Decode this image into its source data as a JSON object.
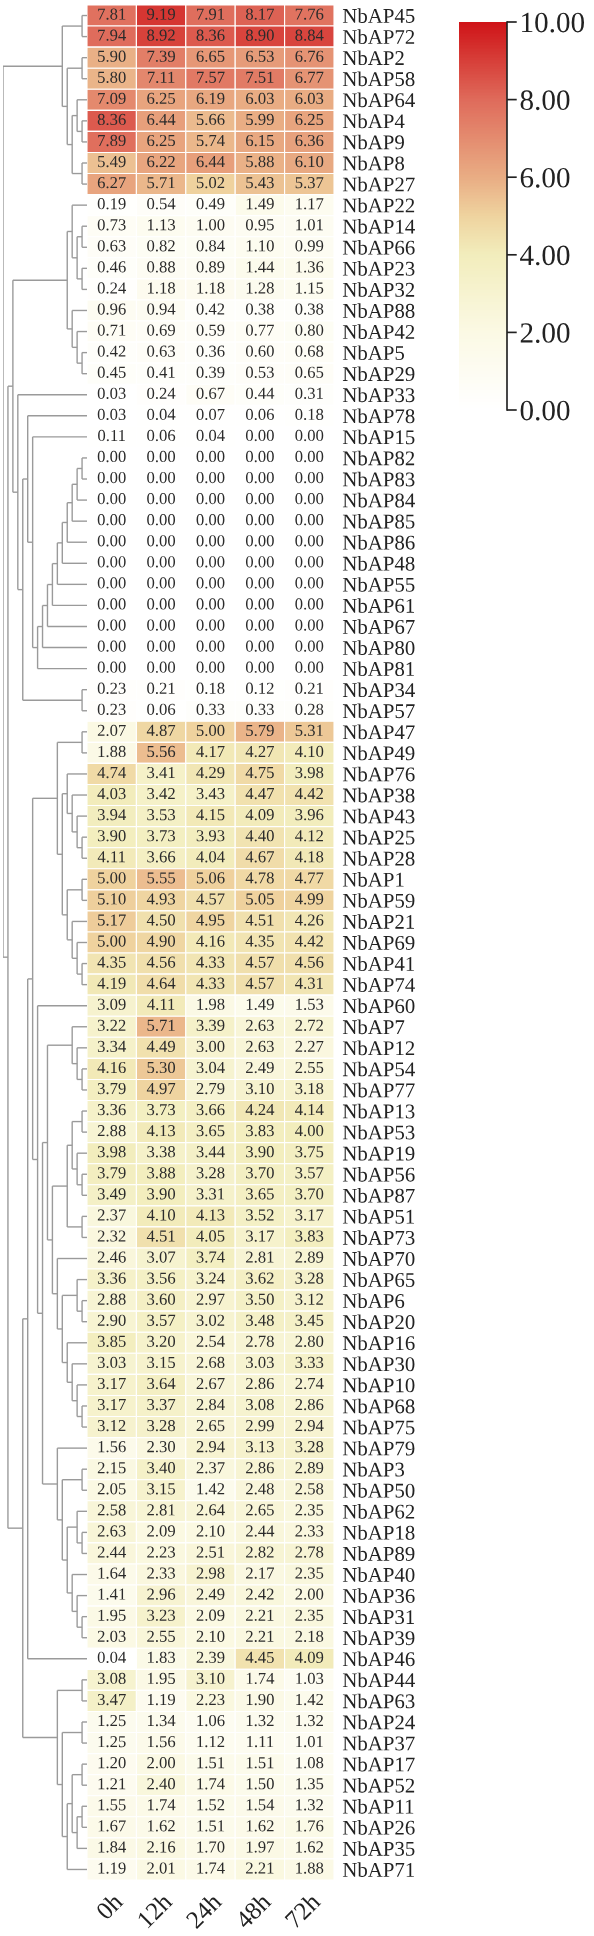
{
  "chart_data": {
    "type": "heatmap",
    "categories": [
      "0h",
      "12h",
      "24h",
      "48h",
      "72h"
    ],
    "y_categories": [
      "NbAP45",
      "NbAP72",
      "NbAP2",
      "NbAP58",
      "NbAP64",
      "NbAP4",
      "NbAP9",
      "NbAP8",
      "NbAP27",
      "NbAP22",
      "NbAP14",
      "NbAP66",
      "NbAP23",
      "NbAP32",
      "NbAP88",
      "NbAP42",
      "NbAP5",
      "NbAP29",
      "NbAP33",
      "NbAP78",
      "NbAP15",
      "NbAP82",
      "NbAP83",
      "NbAP84",
      "NbAP85",
      "NbAP86",
      "NbAP48",
      "NbAP55",
      "NbAP61",
      "NbAP67",
      "NbAP80",
      "NbAP81",
      "NbAP34",
      "NbAP57",
      "NbAP47",
      "NbAP49",
      "NbAP76",
      "NbAP38",
      "NbAP43",
      "NbAP25",
      "NbAP28",
      "NbAP1",
      "NbAP59",
      "NbAP21",
      "NbAP69",
      "NbAP41",
      "NbAP74",
      "NbAP60",
      "NbAP7",
      "NbAP12",
      "NbAP54",
      "NbAP77",
      "NbAP13",
      "NbAP53",
      "NbAP19",
      "NbAP56",
      "NbAP87",
      "NbAP51",
      "NbAP73",
      "NbAP70",
      "NbAP65",
      "NbAP6",
      "NbAP20",
      "NbAP16",
      "NbAP30",
      "NbAP10",
      "NbAP68",
      "NbAP75",
      "NbAP79",
      "NbAP3",
      "NbAP50",
      "NbAP62",
      "NbAP18",
      "NbAP89",
      "NbAP40",
      "NbAP36",
      "NbAP31",
      "NbAP39",
      "NbAP46",
      "NbAP44",
      "NbAP63",
      "NbAP24",
      "NbAP37",
      "NbAP17",
      "NbAP52",
      "NbAP11",
      "NbAP26",
      "NbAP35",
      "NbAP71"
    ],
    "cells": [
      [
        7.81,
        9.19,
        7.91,
        8.17,
        7.76
      ],
      [
        7.94,
        8.92,
        8.36,
        8.9,
        8.84
      ],
      [
        5.9,
        7.39,
        6.65,
        6.53,
        6.76
      ],
      [
        5.8,
        7.11,
        7.57,
        7.51,
        6.77
      ],
      [
        7.09,
        6.25,
        6.19,
        6.03,
        6.03
      ],
      [
        8.36,
        6.44,
        5.66,
        5.99,
        6.25
      ],
      [
        7.89,
        6.25,
        5.74,
        6.15,
        6.36
      ],
      [
        5.49,
        6.22,
        6.44,
        5.88,
        6.1
      ],
      [
        6.27,
        5.71,
        5.02,
        5.43,
        5.37
      ],
      [
        0.19,
        0.54,
        0.49,
        1.49,
        1.17
      ],
      [
        0.73,
        1.13,
        1.0,
        0.95,
        1.01
      ],
      [
        0.63,
        0.82,
        0.84,
        1.1,
        0.99
      ],
      [
        0.46,
        0.88,
        0.89,
        1.44,
        1.36
      ],
      [
        0.24,
        1.18,
        1.18,
        1.28,
        1.15
      ],
      [
        0.96,
        0.94,
        0.42,
        0.38,
        0.38
      ],
      [
        0.71,
        0.69,
        0.59,
        0.77,
        0.8
      ],
      [
        0.42,
        0.63,
        0.36,
        0.6,
        0.68
      ],
      [
        0.45,
        0.41,
        0.39,
        0.53,
        0.65
      ],
      [
        0.03,
        0.24,
        0.67,
        0.44,
        0.31
      ],
      [
        0.03,
        0.04,
        0.07,
        0.06,
        0.18
      ],
      [
        0.11,
        0.06,
        0.04,
        0.0,
        0.0
      ],
      [
        0.0,
        0.0,
        0.0,
        0.0,
        0.0
      ],
      [
        0.0,
        0.0,
        0.0,
        0.0,
        0.0
      ],
      [
        0.0,
        0.0,
        0.0,
        0.0,
        0.0
      ],
      [
        0.0,
        0.0,
        0.0,
        0.0,
        0.0
      ],
      [
        0.0,
        0.0,
        0.0,
        0.0,
        0.0
      ],
      [
        0.0,
        0.0,
        0.0,
        0.0,
        0.0
      ],
      [
        0.0,
        0.0,
        0.0,
        0.0,
        0.0
      ],
      [
        0.0,
        0.0,
        0.0,
        0.0,
        0.0
      ],
      [
        0.0,
        0.0,
        0.0,
        0.0,
        0.0
      ],
      [
        0.0,
        0.0,
        0.0,
        0.0,
        0.0
      ],
      [
        0.0,
        0.0,
        0.0,
        0.0,
        0.0
      ],
      [
        0.23,
        0.21,
        0.18,
        0.12,
        0.21
      ],
      [
        0.23,
        0.06,
        0.33,
        0.33,
        0.28
      ],
      [
        2.07,
        4.87,
        5.0,
        5.79,
        5.31
      ],
      [
        1.88,
        5.56,
        4.17,
        4.27,
        4.1
      ],
      [
        4.74,
        3.41,
        4.29,
        4.75,
        3.98
      ],
      [
        4.03,
        3.42,
        3.43,
        4.47,
        4.42
      ],
      [
        3.94,
        3.53,
        4.15,
        4.09,
        3.96
      ],
      [
        3.9,
        3.73,
        3.93,
        4.4,
        4.12
      ],
      [
        4.11,
        3.66,
        4.04,
        4.67,
        4.18
      ],
      [
        5.0,
        5.55,
        5.06,
        4.78,
        4.77
      ],
      [
        5.1,
        4.93,
        4.57,
        5.05,
        4.99
      ],
      [
        5.17,
        4.5,
        4.95,
        4.51,
        4.26
      ],
      [
        5.0,
        4.9,
        4.16,
        4.35,
        4.42
      ],
      [
        4.35,
        4.56,
        4.33,
        4.57,
        4.56
      ],
      [
        4.19,
        4.64,
        4.33,
        4.57,
        4.31
      ],
      [
        3.09,
        4.11,
        1.98,
        1.49,
        1.53
      ],
      [
        3.22,
        5.71,
        3.39,
        2.63,
        2.72
      ],
      [
        3.34,
        4.49,
        3.0,
        2.63,
        2.27
      ],
      [
        4.16,
        5.3,
        3.04,
        2.49,
        2.55
      ],
      [
        3.79,
        4.97,
        2.79,
        3.1,
        3.18
      ],
      [
        3.36,
        3.73,
        3.66,
        4.24,
        4.14
      ],
      [
        2.88,
        4.13,
        3.65,
        3.83,
        4.0
      ],
      [
        3.98,
        3.38,
        3.44,
        3.9,
        3.75
      ],
      [
        3.79,
        3.88,
        3.28,
        3.7,
        3.57
      ],
      [
        3.49,
        3.9,
        3.31,
        3.65,
        3.7
      ],
      [
        2.37,
        4.1,
        4.13,
        3.52,
        3.17
      ],
      [
        2.32,
        4.51,
        4.05,
        3.17,
        3.83
      ],
      [
        2.46,
        3.07,
        3.74,
        2.81,
        2.89
      ],
      [
        3.36,
        3.56,
        3.24,
        3.62,
        3.28
      ],
      [
        2.88,
        3.6,
        2.97,
        3.5,
        3.12
      ],
      [
        2.9,
        3.57,
        3.02,
        3.48,
        3.45
      ],
      [
        3.85,
        3.2,
        2.54,
        2.78,
        2.8
      ],
      [
        3.03,
        3.15,
        2.68,
        3.03,
        3.33
      ],
      [
        3.17,
        3.64,
        2.67,
        2.86,
        2.74
      ],
      [
        3.17,
        3.37,
        2.84,
        3.08,
        2.86
      ],
      [
        3.12,
        3.28,
        2.65,
        2.99,
        2.94
      ],
      [
        1.56,
        2.3,
        2.94,
        3.13,
        3.28
      ],
      [
        2.15,
        3.4,
        2.37,
        2.86,
        2.89
      ],
      [
        2.05,
        3.15,
        1.42,
        2.48,
        2.58
      ],
      [
        2.58,
        2.81,
        2.64,
        2.65,
        2.35
      ],
      [
        2.63,
        2.09,
        2.1,
        2.44,
        2.33
      ],
      [
        2.44,
        2.23,
        2.51,
        2.82,
        2.78
      ],
      [
        1.64,
        2.33,
        2.98,
        2.17,
        2.35
      ],
      [
        1.41,
        2.96,
        2.49,
        2.42,
        2.0
      ],
      [
        1.95,
        3.23,
        2.09,
        2.21,
        2.35
      ],
      [
        2.03,
        2.55,
        2.1,
        2.21,
        2.18
      ],
      [
        0.04,
        1.83,
        2.39,
        4.45,
        4.09
      ],
      [
        3.08,
        1.95,
        3.1,
        1.74,
        1.03
      ],
      [
        3.47,
        1.19,
        2.23,
        1.9,
        1.42
      ],
      [
        1.25,
        1.34,
        1.06,
        1.32,
        1.32
      ],
      [
        1.25,
        1.56,
        1.12,
        1.11,
        1.01
      ],
      [
        1.2,
        2.0,
        1.51,
        1.51,
        1.08
      ],
      [
        1.21,
        2.4,
        1.74,
        1.5,
        1.35
      ],
      [
        1.55,
        1.74,
        1.52,
        1.54,
        1.32
      ],
      [
        1.67,
        1.62,
        1.51,
        1.62,
        1.76
      ],
      [
        1.84,
        2.16,
        1.7,
        1.97,
        1.62
      ],
      [
        1.19,
        2.01,
        1.74,
        2.21,
        1.88
      ]
    ],
    "cell_labels": [
      [
        "7.81",
        "9.19",
        "7.91",
        "8.17",
        "7.76"
      ],
      [
        "7.94",
        "8.92",
        "8.36",
        "8.90",
        "8.84"
      ],
      [
        "5.90",
        "7.39",
        "6.65",
        "6.53",
        "6.76"
      ],
      [
        "5.80",
        "7.11",
        "7.57",
        "7.51",
        "6.77"
      ],
      [
        "7.09",
        "6.25",
        "6.19",
        "6.03",
        "6.03"
      ],
      [
        "8.36",
        "6.44",
        "5.66",
        "5.99",
        "6.25"
      ],
      [
        "7.89",
        "6.25",
        "5.74",
        "6.15",
        "6.36"
      ],
      [
        "5.49",
        "6.22",
        "6.44",
        "5.88",
        "6.10"
      ],
      [
        "6.27",
        "5.71",
        "5.02",
        "5.43",
        "5.37"
      ],
      [
        "0.19",
        "0.54",
        "0.49",
        "1.49",
        "1.17"
      ],
      [
        "0.73",
        "1.13",
        "1.00",
        "0.95",
        "1.01"
      ],
      [
        "0.63",
        "0.82",
        "0.84",
        "1.10",
        "0.99"
      ],
      [
        "0.46",
        "0.88",
        "0.89",
        "1.44",
        "1.36"
      ],
      [
        "0.24",
        "1.18",
        "1.18",
        "1.28",
        "1.15"
      ],
      [
        "0.96",
        "0.94",
        "0.42",
        "0.38",
        "0.38"
      ],
      [
        "0.71",
        "0.69",
        "0.59",
        "0.77",
        "0.80"
      ],
      [
        "0.42",
        "0.63",
        "0.36",
        "0.60",
        "0.68"
      ],
      [
        "0.45",
        "0.41",
        "0.39",
        "0.53",
        "0.65"
      ],
      [
        "0.03",
        "0.24",
        "0.67",
        "0.44",
        "0.31"
      ],
      [
        "0.03",
        "0.04",
        "0.07",
        "0.06",
        "0.18"
      ],
      [
        "0.11",
        "0.06",
        "0.04",
        "0.00",
        "0.00"
      ],
      [
        "0.00",
        "0.00",
        "0.00",
        "0.00",
        "0.00"
      ],
      [
        "0.00",
        "0.00",
        "0.00",
        "0.00",
        "0.00"
      ],
      [
        "0.00",
        "0.00",
        "0.00",
        "0.00",
        "0.00"
      ],
      [
        "0.00",
        "0.00",
        "0.00",
        "0.00",
        "0.00"
      ],
      [
        "0.00",
        "0.00",
        "0.00",
        "0.00",
        "0.00"
      ],
      [
        "0.00",
        "0.00",
        "0.00",
        "0.00",
        "0.00"
      ],
      [
        "0.00",
        "0.00",
        "0.00",
        "0.00",
        "0.00"
      ],
      [
        "0.00",
        "0.00",
        "0.00",
        "0.00",
        "0.00"
      ],
      [
        "0.00",
        "0.00",
        "0.00",
        "0.00",
        "0.00"
      ],
      [
        "0.00",
        "0.00",
        "0.00",
        "0.00",
        "0.00"
      ],
      [
        "0.00",
        "0.00",
        "0.00",
        "0.00",
        "0.00"
      ],
      [
        "0.23",
        "0.21",
        "0.18",
        "0.12",
        "0.21"
      ],
      [
        "0.23",
        "0.06",
        "0.33",
        "0.33",
        "0.28"
      ],
      [
        "2.07",
        "4.87",
        "5.00",
        "5.79",
        "5.31"
      ],
      [
        "1.88",
        "5.56",
        "4.17",
        "4.27",
        "4.10"
      ],
      [
        "4.74",
        "3.41",
        "4.29",
        "4.75",
        "3.98"
      ],
      [
        "4.03",
        "3.42",
        "3.43",
        "4.47",
        "4.42"
      ],
      [
        "3.94",
        "3.53",
        "4.15",
        "4.09",
        "3.96"
      ],
      [
        "3.90",
        "3.73",
        "3.93",
        "4.40",
        "4.12"
      ],
      [
        "4.11",
        "3.66",
        "4.04",
        "4.67",
        "4.18"
      ],
      [
        "5.00",
        "5.55",
        "5.06",
        "4.78",
        "4.77"
      ],
      [
        "5.10",
        "4.93",
        "4.57",
        "5.05",
        "4.99"
      ],
      [
        "5.17",
        "4.50",
        "4.95",
        "4.51",
        "4.26"
      ],
      [
        "5.00",
        "4.90",
        "4.16",
        "4.35",
        "4.42"
      ],
      [
        "4.35",
        "4.56",
        "4.33",
        "4.57",
        "4.56"
      ],
      [
        "4.19",
        "4.64",
        "4.33",
        "4.57",
        "4.31"
      ],
      [
        "3.09",
        "4.11",
        "1.98",
        "1.49",
        "1.53"
      ],
      [
        "3.22",
        "5.71",
        "3.39",
        "2.63",
        "2.72"
      ],
      [
        "3.34",
        "4.49",
        "3.00",
        "2.63",
        "2.27"
      ],
      [
        "4.16",
        "5.30",
        "3.04",
        "2.49",
        "2.55"
      ],
      [
        "3.79",
        "4.97",
        "2.79",
        "3.10",
        "3.18"
      ],
      [
        "3.36",
        "3.73",
        "3.66",
        "4.24",
        "4.14"
      ],
      [
        "2.88",
        "4.13",
        "3.65",
        "3.83",
        "4.00"
      ],
      [
        "3.98",
        "3.38",
        "3.44",
        "3.90",
        "3.75"
      ],
      [
        "3.79",
        "3.88",
        "3.28",
        "3.70",
        "3.57"
      ],
      [
        "3.49",
        "3.90",
        "3.31",
        "3.65",
        "3.70"
      ],
      [
        "2.37",
        "4.10",
        "4.13",
        "3.52",
        "3.17"
      ],
      [
        "2.32",
        "4.51",
        "4.05",
        "3.17",
        "3.83"
      ],
      [
        "2.46",
        "3.07",
        "3.74",
        "2.81",
        "2.89"
      ],
      [
        "3.36",
        "3.56",
        "3.24",
        "3.62",
        "3.28"
      ],
      [
        "2.88",
        "3.60",
        "2.97",
        "3.50",
        "3.12"
      ],
      [
        "2.90",
        "3.57",
        "3.02",
        "3.48",
        "3.45"
      ],
      [
        "3.85",
        "3.20",
        "2.54",
        "2.78",
        "2.80"
      ],
      [
        "3.03",
        "3.15",
        "2.68",
        "3.03",
        "3.33"
      ],
      [
        "3.17",
        "3.64",
        "2.67",
        "2.86",
        "2.74"
      ],
      [
        "3.17",
        "3.37",
        "2.84",
        "3.08",
        "2.86"
      ],
      [
        "3.12",
        "3.28",
        "2.65",
        "2.99",
        "2.94"
      ],
      [
        "1.56",
        "2.30",
        "2.94",
        "3.13",
        "3.28"
      ],
      [
        "2.15",
        "3.40",
        "2.37",
        "2.86",
        "2.89"
      ],
      [
        "2.05",
        "3.15",
        "1.42",
        "2.48",
        "2.58"
      ],
      [
        "2.58",
        "2.81",
        "2.64",
        "2.65",
        "2.35"
      ],
      [
        "2.63",
        "2.09",
        "2.10",
        "2.44",
        "2.33"
      ],
      [
        "2.44",
        "2.23",
        "2.51",
        "2.82",
        "2.78"
      ],
      [
        "1.64",
        "2.33",
        "2.98",
        "2.17",
        "2.35"
      ],
      [
        "1.41",
        "2.96",
        "2.49",
        "2.42",
        "2.00"
      ],
      [
        "1.95",
        "3.23",
        "2.09",
        "2.21",
        "2.35"
      ],
      [
        "2.03",
        "2.55",
        "2.10",
        "2.21",
        "2.18"
      ],
      [
        "0.04",
        "1.83",
        "2.39",
        "4.45",
        "4.09"
      ],
      [
        "3.08",
        "1.95",
        "3.10",
        "1.74",
        "1.03"
      ],
      [
        "3.47",
        "1.19",
        "2.23",
        "1.90",
        "1.42"
      ],
      [
        "1.25",
        "1.34",
        "1.06",
        "1.32",
        "1.32"
      ],
      [
        "1.25",
        "1.56",
        "1.12",
        "1.11",
        "1.01"
      ],
      [
        "1.20",
        "2.00",
        "1.51",
        "1.51",
        "1.08"
      ],
      [
        "1.21",
        "2.40",
        "1.74",
        "1.50",
        "1.35"
      ],
      [
        "1.55",
        "1.74",
        "1.52",
        "1.54",
        "1.32"
      ],
      [
        "1.67",
        "1.62",
        "1.51",
        "1.62",
        "1.76"
      ],
      [
        "1.84",
        "2.16",
        "1.70",
        "1.97",
        "1.62"
      ],
      [
        "1.19",
        "2.01",
        "1.74",
        "2.21",
        "1.88"
      ]
    ],
    "clim": [
      0,
      10
    ],
    "cticks": [
      {
        "value": 0,
        "label": "0.00"
      },
      {
        "value": 2,
        "label": "2.00"
      },
      {
        "value": 4,
        "label": "4.00"
      },
      {
        "value": 6,
        "label": "6.00"
      },
      {
        "value": 8,
        "label": "8.00"
      },
      {
        "value": 10,
        "label": "10.00"
      }
    ]
  }
}
